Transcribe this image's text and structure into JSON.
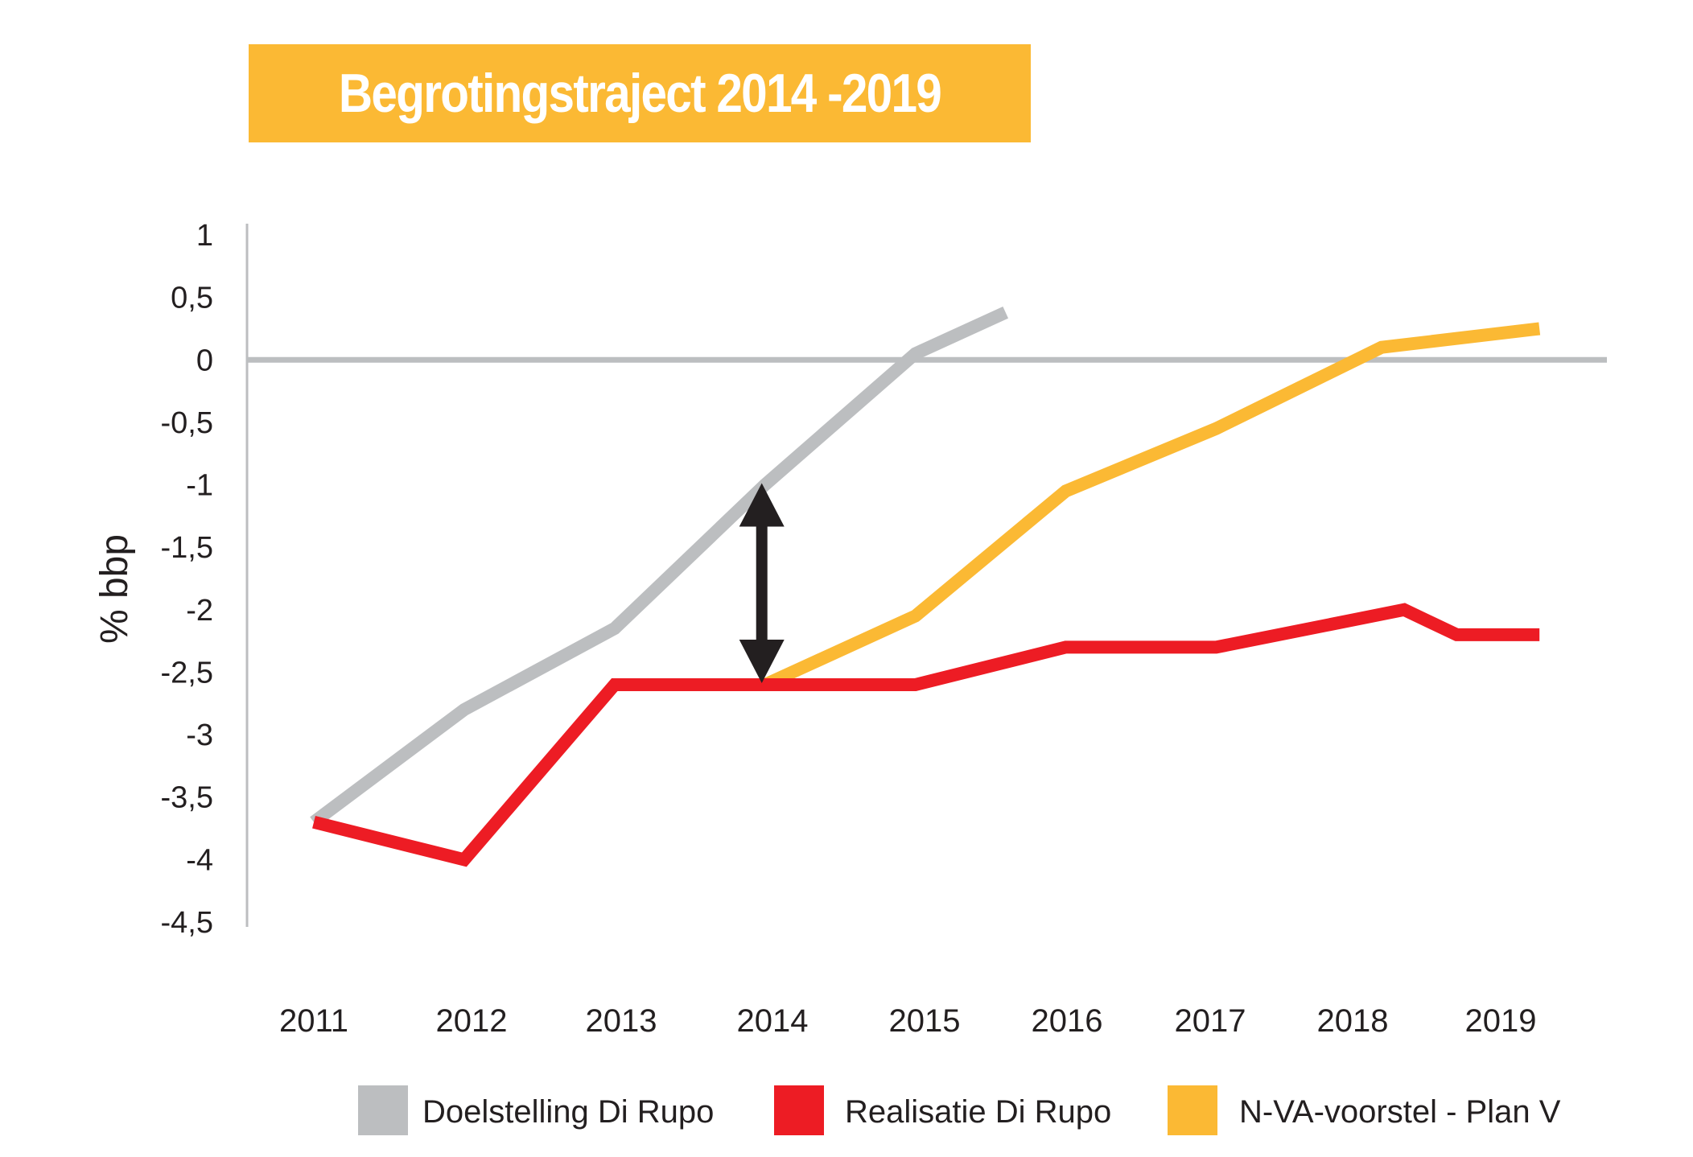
{
  "chart_data": {
    "type": "line",
    "title": "Begrotingstraject 2014 -2019",
    "ylabel": "% bbp",
    "xlabel": "",
    "ylim": [
      -4.5,
      1
    ],
    "yticks": [
      1,
      0.5,
      0,
      -0.5,
      -1,
      -1.5,
      -2,
      -2.5,
      -3,
      -3.5,
      -4,
      -4.5
    ],
    "ytick_labels": [
      "1",
      "0,5",
      "0",
      "-0,5",
      "-1",
      "-1,5",
      "-2",
      "-2,5",
      "-3",
      "-3,5",
      "-4",
      "-4,5"
    ],
    "categories": [
      "2011",
      "2012",
      "2013",
      "2014",
      "2015",
      "2016",
      "2017",
      "2018",
      "2019"
    ],
    "series": [
      {
        "name": "Doelstelling Di Rupo",
        "color": "#bcbec0",
        "points": [
          [
            2011,
            -3.7
          ],
          [
            2012,
            -2.8
          ],
          [
            2013,
            -2.15
          ],
          [
            2014,
            -1.0
          ],
          [
            2015,
            0.05
          ],
          [
            2015.6,
            0.38
          ]
        ]
      },
      {
        "name": "Realisatie Di Rupo",
        "color": "#ed1c24",
        "points": [
          [
            2011,
            -3.7
          ],
          [
            2012,
            -4.0
          ],
          [
            2013,
            -2.6
          ],
          [
            2014,
            -2.6
          ],
          [
            2015,
            -2.6
          ],
          [
            2016,
            -2.3
          ],
          [
            2017,
            -2.3
          ],
          [
            2018.25,
            -2.0
          ],
          [
            2018.6,
            -2.2
          ],
          [
            2019.15,
            -2.2
          ]
        ]
      },
      {
        "name": "N-VA-voorstel -  Plan V",
        "color": "#fbb934",
        "points": [
          [
            2014,
            -2.6
          ],
          [
            2015,
            -2.05
          ],
          [
            2016,
            -1.05
          ],
          [
            2017,
            -0.55
          ],
          [
            2018.1,
            0.1
          ],
          [
            2019.15,
            0.25
          ]
        ]
      }
    ],
    "annotation": {
      "type": "double-arrow",
      "x": 2014,
      "y_from": -1.0,
      "y_to": -2.6,
      "color": "#231f20"
    },
    "zero_line": {
      "y": 0,
      "color": "#bcbec0"
    },
    "grid": false,
    "legend_position": "bottom"
  },
  "colors": {
    "title_background": "#fbb934",
    "title_text": "#ffffff",
    "axis": "#bcbec0",
    "text": "#231f20"
  }
}
